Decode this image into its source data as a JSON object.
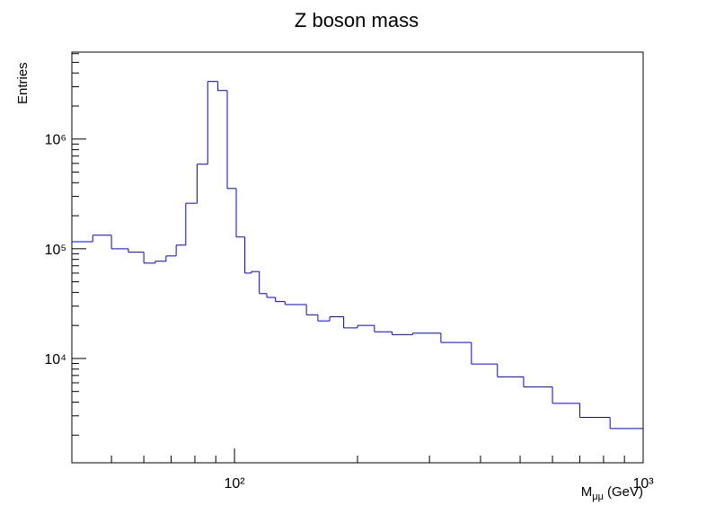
{
  "chart_data": {
    "type": "histogram",
    "title": "Z boson mass",
    "y_label": "Entries",
    "x_label": {
      "main": "M",
      "sub": "μμ",
      "unit": "(GeV)"
    },
    "color": "#0000ff",
    "x_log": true,
    "y_log": true,
    "bins": [
      40,
      45,
      50,
      55,
      60,
      64,
      68,
      72,
      76,
      81,
      86,
      91,
      96,
      101,
      106,
      110,
      115,
      120,
      126,
      133,
      141,
      150,
      160,
      171,
      185,
      200,
      220,
      243,
      273,
      320,
      380,
      440,
      510,
      600,
      700,
      830,
      1000
    ],
    "values": [
      116000,
      133000,
      100000,
      93000,
      74000,
      77000,
      86000,
      108000,
      260000,
      590000,
      3350000,
      2770000,
      354000,
      128000,
      60000,
      62000,
      39000,
      36000,
      33000,
      31000,
      31000,
      25000,
      22000,
      24000,
      19000,
      20000,
      17500,
      16500,
      17000,
      14000,
      8900,
      6800,
      5500,
      3900,
      2900,
      2300
    ],
    "xlim": [
      40,
      1000
    ],
    "ylim": [
      1120,
      6200000
    ],
    "xticks": [
      {
        "value": 100,
        "label": "10²"
      },
      {
        "value": 1000,
        "label": "10³"
      }
    ],
    "yticks": [
      {
        "value": 10000,
        "label": "10⁴"
      },
      {
        "value": 100000,
        "label": "10⁵"
      },
      {
        "value": 1000000,
        "label": "10⁶"
      }
    ]
  }
}
